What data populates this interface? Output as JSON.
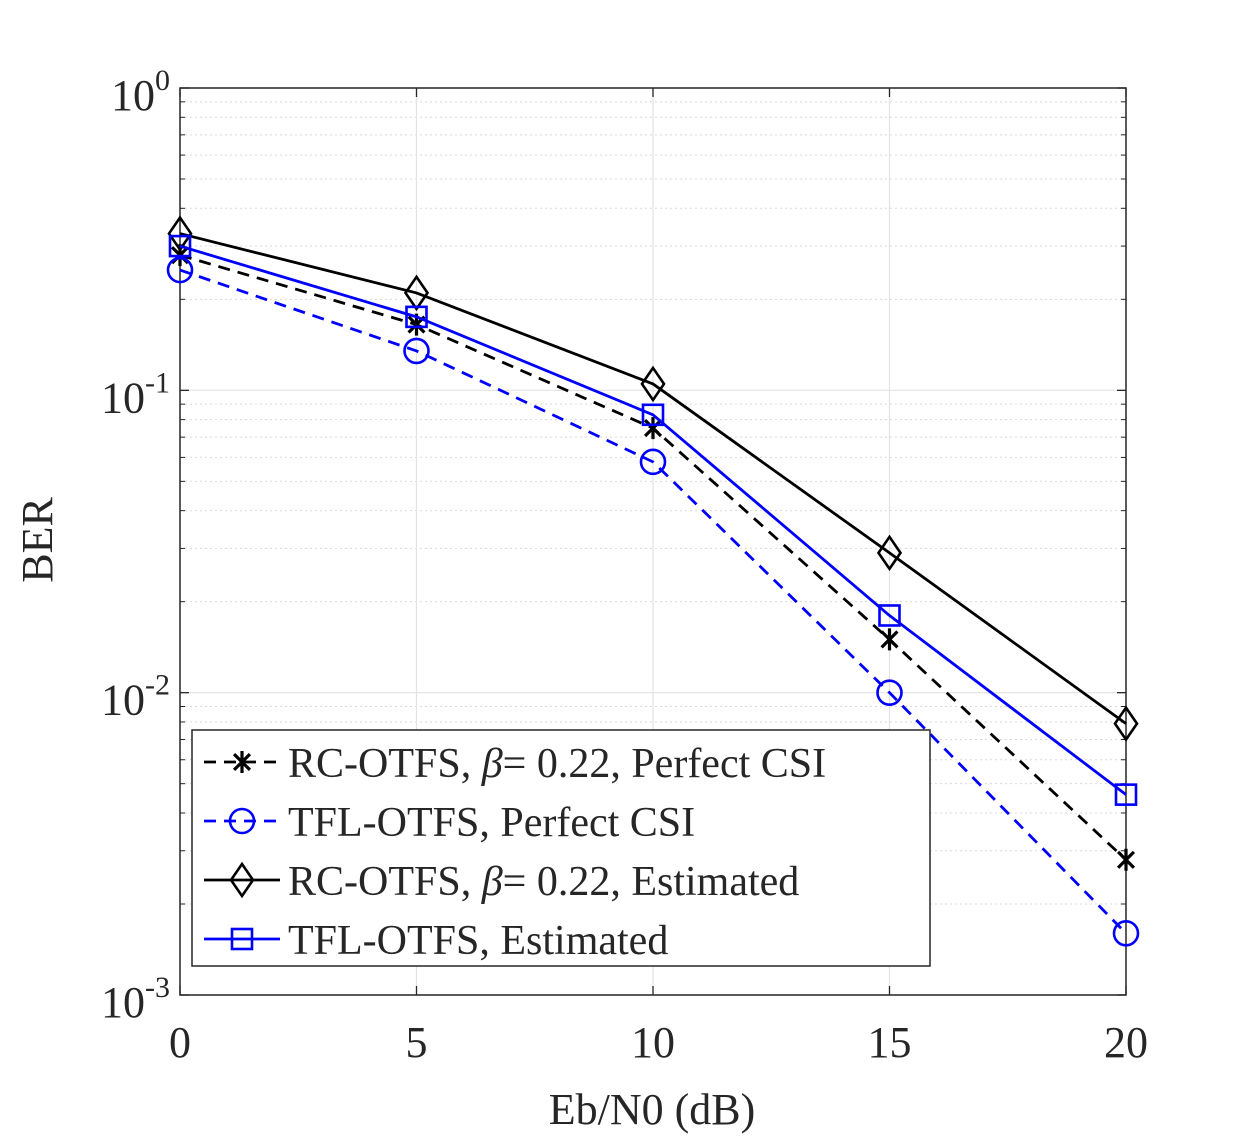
{
  "chart_data": {
    "type": "line",
    "xlabel": "Eb/N0 (dB)",
    "ylabel": "BER",
    "xlim": [
      0,
      20
    ],
    "ylim": [
      0.001,
      1
    ],
    "yscale": "log",
    "grid": true,
    "legend_position": "bottom-left",
    "x": [
      0,
      5,
      10,
      15,
      20
    ],
    "x_ticks": [
      "0",
      "5",
      "10",
      "15",
      "20"
    ],
    "y_ticks": [
      {
        "value": 1,
        "base": "10",
        "exp": "0"
      },
      {
        "value": 0.1,
        "base": "10",
        "exp": "-1"
      },
      {
        "value": 0.01,
        "base": "10",
        "exp": "-2"
      },
      {
        "value": 0.001,
        "base": "10",
        "exp": "-3"
      }
    ],
    "series": [
      {
        "name_parts": [
          "RC-OTFS, ",
          "β",
          "= 0.22, Perfect CSI"
        ],
        "color": "#000000",
        "dash": "dashed",
        "marker": "asterisk",
        "values": [
          0.28,
          0.165,
          0.075,
          0.015,
          0.0028
        ]
      },
      {
        "name_parts": [
          "TFL-OTFS, Perfect CSI"
        ],
        "color": "#0000ff",
        "dash": "dashed",
        "marker": "circle",
        "values": [
          0.25,
          0.135,
          0.058,
          0.01,
          0.0016
        ]
      },
      {
        "name_parts": [
          "RC-OTFS, ",
          "β",
          "= 0.22, Estimated"
        ],
        "color": "#000000",
        "dash": "solid",
        "marker": "diamond",
        "values": [
          0.33,
          0.21,
          0.105,
          0.029,
          0.0079
        ]
      },
      {
        "name_parts": [
          "TFL-OTFS, Estimated"
        ],
        "color": "#0000ff",
        "dash": "solid",
        "marker": "square",
        "values": [
          0.3,
          0.175,
          0.083,
          0.018,
          0.0046
        ]
      }
    ]
  }
}
